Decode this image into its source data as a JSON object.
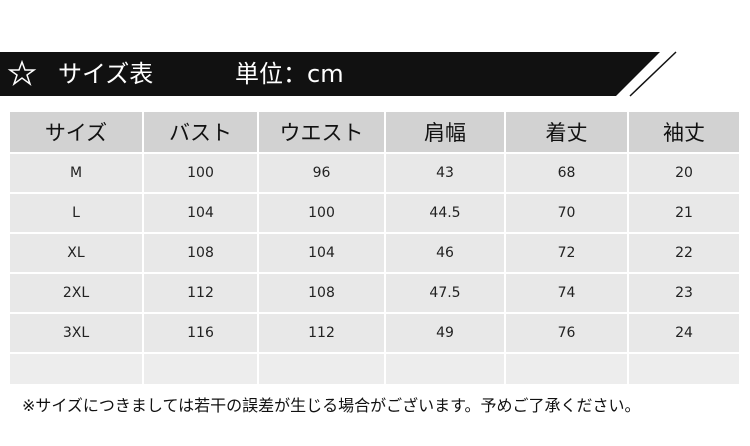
{
  "header": {
    "title": "サイズ表",
    "unit": "単位：cm"
  },
  "table": {
    "columns": [
      "サイズ",
      "バスト",
      "ウエスト",
      "肩幅",
      "着丈",
      "袖丈"
    ],
    "rows": [
      [
        "M",
        100,
        96,
        43,
        68,
        20
      ],
      [
        "L",
        104,
        100,
        44.5,
        70,
        21
      ],
      [
        "XL",
        108,
        104,
        46,
        72,
        22
      ],
      [
        "2XL",
        112,
        108,
        47.5,
        74,
        23
      ],
      [
        "3XL",
        116,
        112,
        49,
        76,
        24
      ]
    ]
  },
  "note": "※サイズにつきましては若干の誤差が生じる場合がございます。予めご了承ください。"
}
